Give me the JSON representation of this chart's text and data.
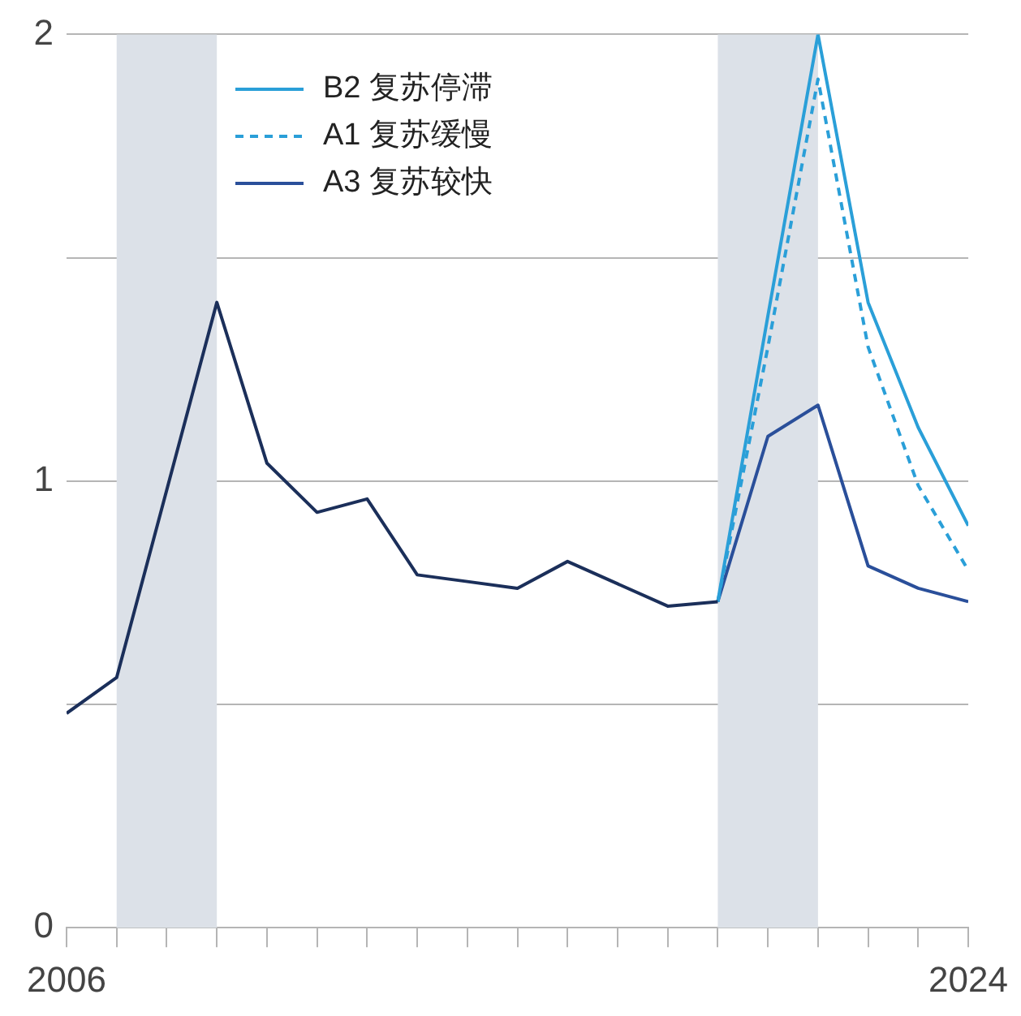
{
  "chart_data": {
    "type": "line",
    "x": [
      2006,
      2007,
      2008,
      2009,
      2010,
      2011,
      2012,
      2013,
      2014,
      2015,
      2016,
      2017,
      2018,
      2019,
      2020,
      2021,
      2022,
      2023,
      2024
    ],
    "series": [
      {
        "color": "#1b2f5a",
        "values": [
          0.48,
          0.56,
          0.98,
          1.4,
          1.04,
          0.93,
          0.96,
          0.79,
          0.775,
          0.76,
          0.82,
          0.77,
          0.72,
          0.73,
          null,
          null,
          null,
          null,
          null
        ]
      },
      {
        "name": "B2 复苏停滞",
        "color": "#2a9fd8",
        "values": [
          null,
          null,
          null,
          null,
          null,
          null,
          null,
          null,
          null,
          null,
          null,
          null,
          null,
          0.73,
          1.37,
          2.0,
          1.4,
          1.12,
          0.9
        ]
      },
      {
        "name": "A1 复苏缓慢",
        "color": "#2a9fd8",
        "line_style": "dashed",
        "values": [
          null,
          null,
          null,
          null,
          null,
          null,
          null,
          null,
          null,
          null,
          null,
          null,
          null,
          0.73,
          1.3,
          1.9,
          1.3,
          0.99,
          0.8
        ]
      },
      {
        "name": "A3 复苏较快",
        "color": "#2a4f9a",
        "values": [
          null,
          null,
          null,
          null,
          null,
          null,
          null,
          null,
          null,
          null,
          null,
          null,
          null,
          0.73,
          1.1,
          1.17,
          0.81,
          0.76,
          0.73
        ]
      }
    ],
    "xlim": [
      2006,
      2024
    ],
    "xticks": [
      2006,
      {
        "value": 2007,
        "label": null
      },
      {
        "value": 2008,
        "label": null
      },
      {
        "value": 2009,
        "label": null
      },
      {
        "value": 2010,
        "label": null
      },
      {
        "value": 2011,
        "label": null
      },
      {
        "value": 2012,
        "label": null
      },
      {
        "value": 2013,
        "label": null
      },
      {
        "value": 2014,
        "label": null
      },
      {
        "value": 2015,
        "label": null
      },
      {
        "value": 2016,
        "label": null
      },
      {
        "value": 2017,
        "label": null
      },
      {
        "value": 2018,
        "label": null
      },
      {
        "value": 2019,
        "label": null
      },
      {
        "value": 2020,
        "label": null
      },
      {
        "value": 2021,
        "label": null
      },
      {
        "value": 2022,
        "label": null
      },
      {
        "value": 2023,
        "label": null
      },
      2024
    ],
    "ylim": [
      0,
      2
    ],
    "yticks": [
      0,
      {
        "value": 0.5,
        "label": null
      },
      1,
      {
        "value": 1.5,
        "label": null
      },
      2
    ],
    "bands": [
      {
        "axis": "x",
        "from": 2007,
        "to": 2009,
        "color": "#dce1e8"
      },
      {
        "axis": "x",
        "from": 2019,
        "to": 2021,
        "color": "#dce1e8"
      }
    ],
    "grid": "y",
    "legend": "top left",
    "marker": "none"
  }
}
